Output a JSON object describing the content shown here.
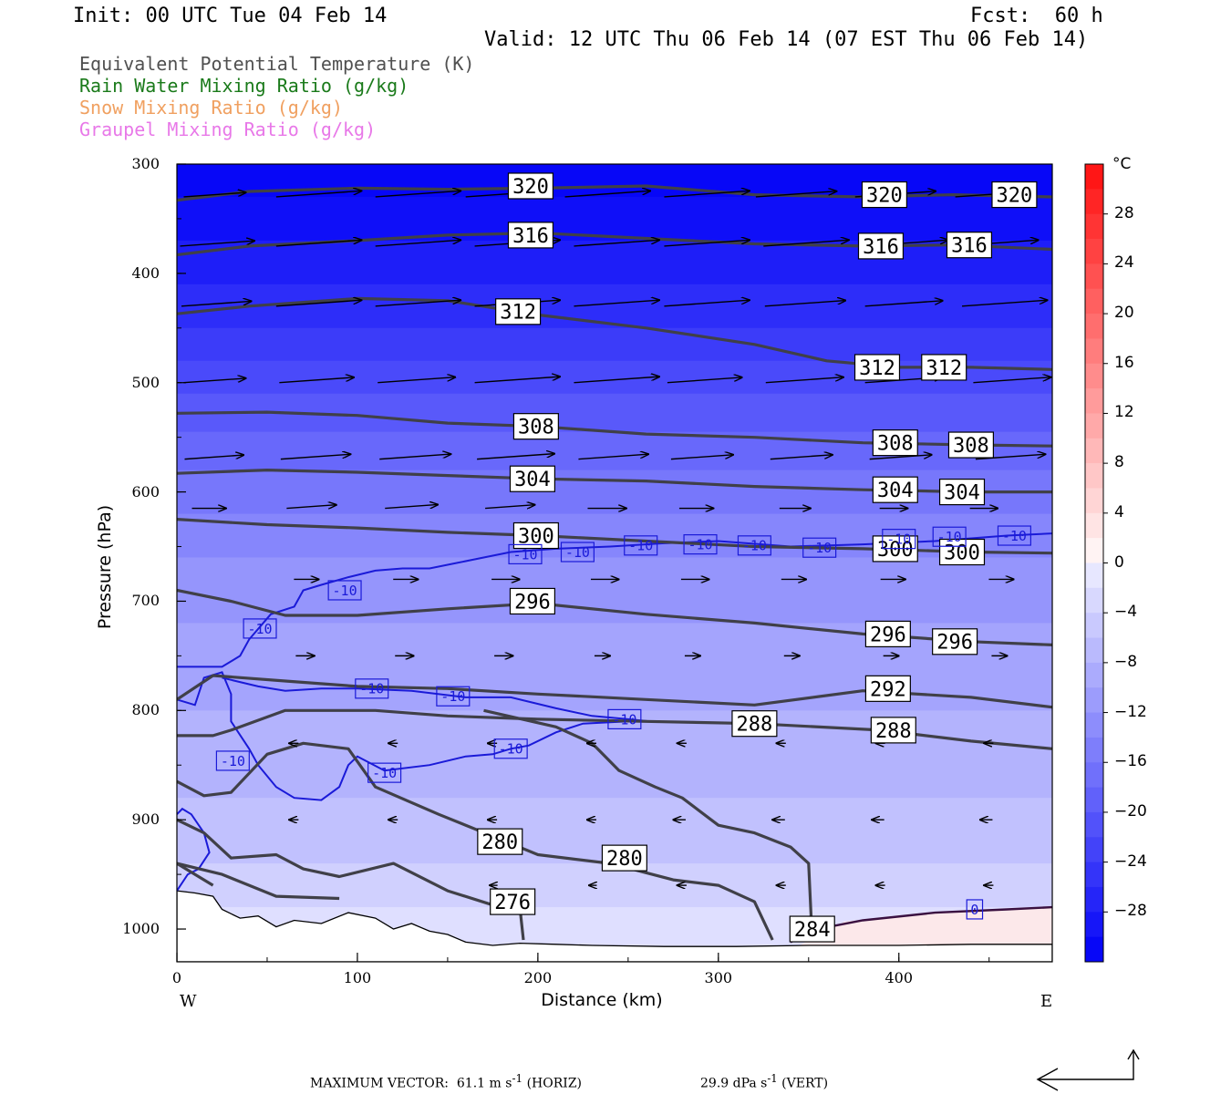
{
  "header": {
    "init": "Init: 00 UTC Tue 04 Feb 14",
    "fcst": "Fcst:  60 h",
    "valid": "Valid: 12 UTC Thu 06 Feb 14 (07 EST Thu 06 Feb 14)"
  },
  "fields": [
    "Equivalent Potential Temperature (K)",
    "Rain Water Mixing Ratio (g/kg)",
    "Snow Mixing Ratio (g/kg)",
    "Graupel Mixing Ratio (g/kg)"
  ],
  "colors": {
    "theta_e": "#404048",
    "temp_contour": "#1a1ad8",
    "zero_contour": "#3a1040",
    "rain": "#1a7a1a",
    "snow": "#f0a060",
    "graupel": "#e878e8"
  },
  "chart_data": {
    "type": "cross-section",
    "xlabel": "Distance (km)",
    "ylabel": "Pressure (hPa)",
    "xlim": [
      0,
      485
    ],
    "ylim": [
      1030,
      300
    ],
    "x_ticks": [
      "0",
      "100",
      "200",
      "300",
      "400"
    ],
    "y_ticks": [
      "300",
      "400",
      "500",
      "600",
      "700",
      "800",
      "900",
      "1000"
    ],
    "left_end_label": "W",
    "right_end_label": "E",
    "colorbar": {
      "unit": "°C",
      "labels": [
        "28",
        "24",
        "20",
        "16",
        "12",
        "8",
        "4",
        "0",
        "-4",
        "-8",
        "-12",
        "-16",
        "-20",
        "-24",
        "-28"
      ],
      "range": [
        -32,
        32
      ],
      "step": 2
    },
    "theta_e_contour_labels": [
      {
        "text": "320",
        "x": 196,
        "p": 320
      },
      {
        "text": "320",
        "x": 392,
        "p": 328
      },
      {
        "text": "320",
        "x": 464,
        "p": 328
      },
      {
        "text": "316",
        "x": 196,
        "p": 365
      },
      {
        "text": "316",
        "x": 390,
        "p": 375
      },
      {
        "text": "316",
        "x": 439,
        "p": 374
      },
      {
        "text": "312",
        "x": 189,
        "p": 435
      },
      {
        "text": "312",
        "x": 388,
        "p": 486
      },
      {
        "text": "312",
        "x": 425,
        "p": 486
      },
      {
        "text": "308",
        "x": 199,
        "p": 540
      },
      {
        "text": "308",
        "x": 398,
        "p": 555
      },
      {
        "text": "308",
        "x": 440,
        "p": 557
      },
      {
        "text": "304",
        "x": 197,
        "p": 588
      },
      {
        "text": "304",
        "x": 398,
        "p": 598
      },
      {
        "text": "304",
        "x": 435,
        "p": 600
      },
      {
        "text": "300",
        "x": 199,
        "p": 640
      },
      {
        "text": "300",
        "x": 398,
        "p": 652
      },
      {
        "text": "300",
        "x": 435,
        "p": 655
      },
      {
        "text": "296",
        "x": 197,
        "p": 700
      },
      {
        "text": "296",
        "x": 394,
        "p": 730
      },
      {
        "text": "296",
        "x": 431,
        "p": 737
      },
      {
        "text": "292",
        "x": 394,
        "p": 780
      },
      {
        "text": "288",
        "x": 320,
        "p": 812
      },
      {
        "text": "288",
        "x": 397,
        "p": 818
      },
      {
        "text": "280",
        "x": 179,
        "p": 920
      },
      {
        "text": "280",
        "x": 248,
        "p": 935
      },
      {
        "text": "276",
        "x": 186,
        "p": 975
      },
      {
        "text": "284",
        "x": 352,
        "p": 1000
      }
    ],
    "temperature_contour_labels": [
      {
        "text": "-10",
        "x": 46,
        "p": 725
      },
      {
        "text": "-10",
        "x": 93,
        "p": 690
      },
      {
        "text": "-10",
        "x": 193,
        "p": 657
      },
      {
        "text": "-10",
        "x": 222,
        "p": 655
      },
      {
        "text": "-10",
        "x": 257,
        "p": 649
      },
      {
        "text": "-10",
        "x": 290,
        "p": 648
      },
      {
        "text": "-10",
        "x": 320,
        "p": 649
      },
      {
        "text": "-10",
        "x": 356,
        "p": 651
      },
      {
        "text": "-10",
        "x": 400,
        "p": 643
      },
      {
        "text": "-10",
        "x": 428,
        "p": 641
      },
      {
        "text": "-10",
        "x": 464,
        "p": 640
      },
      {
        "text": "-10",
        "x": 108,
        "p": 780
      },
      {
        "text": "-10",
        "x": 153,
        "p": 787
      },
      {
        "text": "-10",
        "x": 248,
        "p": 808
      },
      {
        "text": "-10",
        "x": 185,
        "p": 835
      },
      {
        "text": "-10",
        "x": 31,
        "p": 846
      },
      {
        "text": "-10",
        "x": 115,
        "p": 857
      },
      {
        "text": "0",
        "x": 442,
        "p": 982
      }
    ],
    "max_vector": {
      "label": "MAXIMUM VECTOR:",
      "horiz_value": "61.1",
      "horiz_unit_base": "m s",
      "horiz_unit_exp": "-1",
      "horiz_tag": "(HORIZ)",
      "vert_value": "29.9",
      "vert_unit_base": "dPa s",
      "vert_unit_exp": "-1",
      "vert_tag": "(VERT)"
    }
  }
}
